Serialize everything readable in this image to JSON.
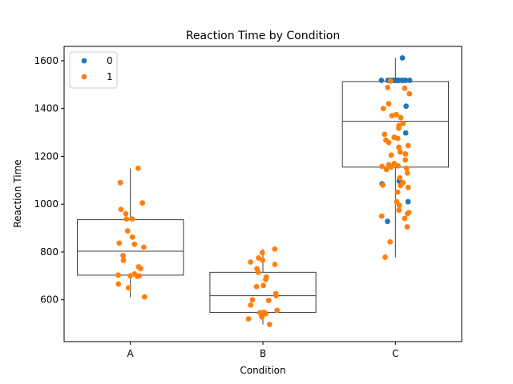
{
  "chart_data": {
    "type": "scatter",
    "title": "Reaction Time by Condition",
    "xlabel": "Condition",
    "ylabel": "Reaction Time",
    "categories": [
      "A",
      "B",
      "C"
    ],
    "ylim": [
      425,
      1660
    ],
    "yticks": [
      600,
      800,
      1000,
      1200,
      1400,
      1600
    ],
    "legend": {
      "placement": "top-left",
      "entries": [
        "0",
        "1"
      ]
    },
    "colors": {
      "0": "#1f77b4",
      "1": "#ff7f0e",
      "box": "#3f3f3f"
    },
    "boxes": [
      {
        "category": "A",
        "q1": 703,
        "median": 803,
        "q3": 935,
        "whisker_low": 610,
        "whisker_high": 1150
      },
      {
        "category": "B",
        "q1": 547,
        "median": 617,
        "q3": 715,
        "whisker_low": 497,
        "whisker_high": 812
      },
      {
        "category": "C",
        "q1": 1155,
        "median": 1347,
        "q3": 1513,
        "whisker_low": 778,
        "whisker_high": 1612
      }
    ],
    "series": [
      {
        "name": "0",
        "points": [
          {
            "category": "C",
            "values": [
              1612,
              1518,
              1518,
              1518,
              1518,
              1518,
              1518,
              1518,
              1518,
              1518,
              1518,
              1518,
              1518,
              1518,
              1518,
              1518,
              1518,
              1518,
              1518,
              1410,
              1298,
              1085,
              1097,
              1010,
              928
            ]
          }
        ]
      },
      {
        "name": "1",
        "points": [
          {
            "category": "A",
            "values": [
              1150,
              1090,
              1005,
              978,
              960,
              938,
              938,
              888,
              862,
              837,
              832,
              820,
              785,
              765,
              738,
              730,
              708,
              703,
              700,
              700,
              698,
              666,
              650,
              612
            ]
          },
          {
            "category": "B",
            "values": [
              812,
              797,
              775,
              765,
              758,
              748,
              730,
              715,
              695,
              685,
              660,
              655,
              626,
              617,
              600,
              597,
              578,
              556,
              548,
              546,
              542,
              537,
              528,
              520,
              497
            ]
          },
          {
            "category": "C",
            "values": [
              1515,
              1488,
              1485,
              1462,
              1420,
              1400,
              1375,
              1370,
              1362,
              1338,
              1330,
              1318,
              1292,
              1280,
              1275,
              1268,
              1258,
              1245,
              1238,
              1218,
              1210,
              1205,
              1185,
              1170,
              1165,
              1160,
              1158,
              1155,
              1150,
              1145,
              1130,
              1110,
              1090,
              1080,
              1078,
              1070,
              1050,
              1010,
              995,
              975,
              965,
              960,
              950,
              940,
              905,
              842,
              778
            ]
          }
        ]
      }
    ]
  }
}
